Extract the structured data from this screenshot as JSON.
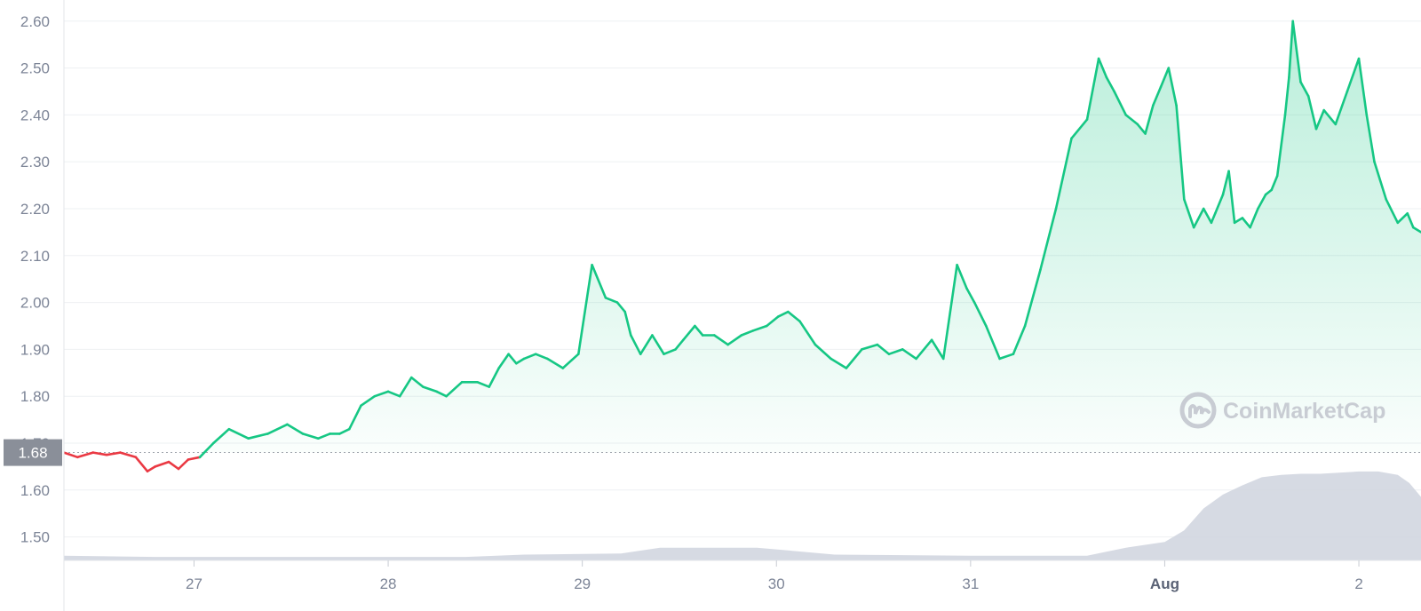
{
  "chart_data": {
    "type": "line",
    "watermark": "CoinMarketCap",
    "yticks": [
      "2.60",
      "2.50",
      "2.40",
      "2.30",
      "2.20",
      "2.10",
      "2.00",
      "1.90",
      "1.80",
      "1.70",
      "1.60",
      "1.50"
    ],
    "ylim": [
      1.45,
      2.645
    ],
    "xticks": [
      {
        "label": "27",
        "day": 1,
        "bold": false
      },
      {
        "label": "28",
        "day": 2,
        "bold": false
      },
      {
        "label": "29",
        "day": 3,
        "bold": false
      },
      {
        "label": "30",
        "day": 4,
        "bold": false
      },
      {
        "label": "31",
        "day": 5,
        "bold": false
      },
      {
        "label": "Aug",
        "day": 6,
        "bold": true
      },
      {
        "label": "2",
        "day": 7,
        "bold": false
      }
    ],
    "xlim": [
      0.33,
      7.32
    ],
    "reference": {
      "value": 1.68,
      "label": "1.68"
    },
    "colors": {
      "up": "#16c784",
      "down": "#ea3943",
      "volume": "#cfd4de",
      "reference_badge": "#8a8f99"
    },
    "price_series": {
      "x": [
        0.33,
        0.4,
        0.48,
        0.55,
        0.62,
        0.7,
        0.76,
        0.8,
        0.87,
        0.92,
        0.97,
        1.03,
        1.1,
        1.18,
        1.28,
        1.38,
        1.48,
        1.56,
        1.64,
        1.7,
        1.75,
        1.8,
        1.86,
        1.93,
        2.0,
        2.06,
        2.12,
        2.18,
        2.25,
        2.3,
        2.38,
        2.46,
        2.52,
        2.57,
        2.62,
        2.66,
        2.7,
        2.76,
        2.82,
        2.9,
        2.98,
        3.05,
        3.12,
        3.18,
        3.22,
        3.25,
        3.3,
        3.36,
        3.42,
        3.48,
        3.52,
        3.58,
        3.62,
        3.68,
        3.75,
        3.82,
        3.88,
        3.95,
        4.01,
        4.06,
        4.12,
        4.2,
        4.28,
        4.36,
        4.44,
        4.52,
        4.58,
        4.65,
        4.72,
        4.8,
        4.86,
        4.93,
        4.98,
        5.02,
        5.08,
        5.15,
        5.22,
        5.28,
        5.36,
        5.44,
        5.52,
        5.6,
        5.66,
        5.7,
        5.74,
        5.8,
        5.86,
        5.9,
        5.94,
        5.98,
        6.02,
        6.06,
        6.1,
        6.15,
        6.2,
        6.24,
        6.26,
        6.3,
        6.33,
        6.36,
        6.4,
        6.44,
        6.48,
        6.52,
        6.55,
        6.58,
        6.62,
        6.64,
        6.66,
        6.7,
        6.74,
        6.78,
        6.82,
        6.88,
        6.94,
        7.0,
        7.04,
        7.08,
        7.14,
        7.2,
        7.25,
        7.28,
        7.32
      ],
      "y": [
        1.68,
        1.67,
        1.68,
        1.675,
        1.68,
        1.67,
        1.64,
        1.65,
        1.66,
        1.645,
        1.665,
        1.67,
        1.7,
        1.73,
        1.71,
        1.72,
        1.74,
        1.72,
        1.71,
        1.72,
        1.72,
        1.73,
        1.78,
        1.8,
        1.81,
        1.8,
        1.84,
        1.82,
        1.81,
        1.8,
        1.83,
        1.83,
        1.82,
        1.86,
        1.89,
        1.87,
        1.88,
        1.89,
        1.88,
        1.86,
        1.89,
        2.08,
        2.01,
        2.0,
        1.98,
        1.93,
        1.89,
        1.93,
        1.89,
        1.9,
        1.92,
        1.95,
        1.93,
        1.93,
        1.91,
        1.93,
        1.94,
        1.95,
        1.97,
        1.98,
        1.96,
        1.91,
        1.88,
        1.86,
        1.9,
        1.91,
        1.89,
        1.9,
        1.88,
        1.92,
        1.88,
        2.08,
        2.03,
        2.0,
        1.95,
        1.88,
        1.89,
        1.95,
        2.07,
        2.2,
        2.35,
        2.39,
        2.52,
        2.48,
        2.45,
        2.4,
        2.38,
        2.36,
        2.42,
        2.46,
        2.5,
        2.42,
        2.22,
        2.16,
        2.2,
        2.17,
        2.19,
        2.23,
        2.28,
        2.17,
        2.18,
        2.16,
        2.2,
        2.23,
        2.24,
        2.27,
        2.4,
        2.48,
        2.6,
        2.47,
        2.44,
        2.37,
        2.41,
        2.38,
        2.45,
        2.52,
        2.4,
        2.3,
        2.22,
        2.17,
        2.19,
        2.16,
        2.15
      ]
    },
    "volume_series": {
      "x": [
        0.33,
        0.8,
        1.5,
        2.4,
        2.7,
        3.2,
        3.4,
        3.9,
        4.3,
        5.0,
        5.6,
        5.8,
        6.0,
        6.1,
        6.2,
        6.3,
        6.4,
        6.5,
        6.6,
        6.7,
        6.8,
        7.0,
        7.1,
        7.2,
        7.26,
        7.32
      ],
      "share": [
        0.04,
        0.03,
        0.03,
        0.03,
        0.05,
        0.06,
        0.11,
        0.11,
        0.05,
        0.04,
        0.04,
        0.11,
        0.16,
        0.26,
        0.45,
        0.57,
        0.65,
        0.72,
        0.74,
        0.75,
        0.75,
        0.77,
        0.77,
        0.74,
        0.67,
        0.55
      ]
    }
  }
}
